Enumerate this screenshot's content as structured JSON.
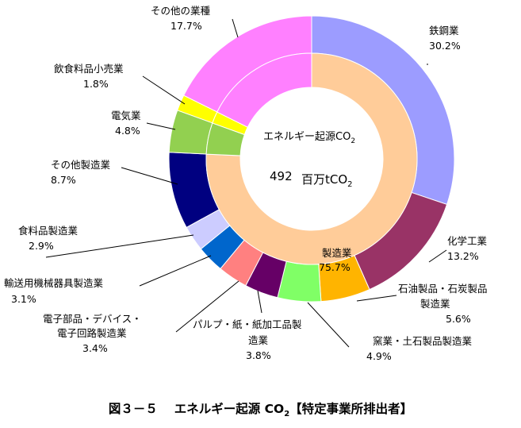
{
  "chart_data": {
    "type": "pie",
    "outer": [
      {
        "name": "鉄鋼業",
        "value": 30.2,
        "label": "30.2%",
        "color": "#9c9cff"
      },
      {
        "name": "化学工業",
        "value": 13.2,
        "label": "13.2%",
        "color": "#993366"
      },
      {
        "name": "石油製品・石炭製品製造業",
        "value": 5.6,
        "label": "5.6%",
        "color": "#ffb400"
      },
      {
        "name": "窯業・土石製品製造業",
        "value": 4.9,
        "label": "4.9%",
        "color": "#80ff66"
      },
      {
        "name": "パルプ・紙・紙加工品製造業",
        "value": 3.8,
        "label": "3.8%",
        "color": "#660066"
      },
      {
        "name": "電子部品・デバイス・電子回路製造業",
        "value": 3.4,
        "label": "3.4%",
        "color": "#ff8080"
      },
      {
        "name": "輸送用機械器具製造業",
        "value": 3.1,
        "label": "3.1%",
        "color": "#0066cc"
      },
      {
        "name": "食料品製造業",
        "value": 2.9,
        "label": "2.9%",
        "color": "#ccccff"
      },
      {
        "name": "その他製造業",
        "value": 8.7,
        "label": "8.7%",
        "color": "#000080"
      },
      {
        "name": "電気業",
        "value": 4.8,
        "label": "4.8%",
        "color": "#92d050"
      },
      {
        "name": "飲食料品小売業",
        "value": 1.8,
        "label": "1.8%",
        "color": "#ffff00"
      },
      {
        "name": "その他の業種",
        "value": 17.7,
        "label": "17.7%",
        "color": "#ff80ff"
      }
    ],
    "inner": [
      {
        "name": "製造業",
        "value": 75.7,
        "label": "75.7%",
        "color": "#ffcc99"
      },
      {
        "name": "電気業",
        "value": 4.8,
        "color": "#92d050"
      },
      {
        "name": "飲食料品小売業",
        "value": 1.8,
        "color": "#ffff00"
      },
      {
        "name": "その他の業種",
        "value": 17.7,
        "color": "#ff80ff"
      }
    ],
    "center": {
      "title": "エネルギー起源CO",
      "title_sub": "2",
      "total": "492",
      "unit": "百万tCO",
      "unit_sub": "2"
    }
  },
  "caption": {
    "prefix": "図３－５　 エネルギー起源 CO",
    "sub": "2",
    "suffix": "【特定事業所排出者】"
  }
}
